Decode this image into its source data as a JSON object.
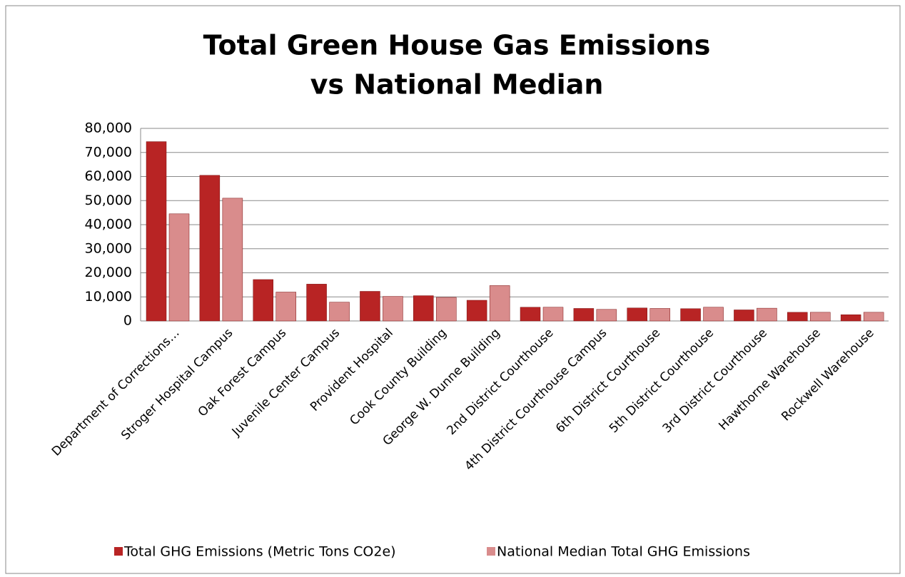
{
  "chart_data": {
    "type": "bar",
    "title": [
      "Total Green House Gas Emissions",
      "vs National Median"
    ],
    "categories": [
      "Department of Corrections…",
      "Stroger Hospital Campus",
      "Oak Forest Campus",
      "Juvenile Center Campus",
      "Provident Hospital",
      "Cook County Building",
      "George W. Dunne Building",
      "2nd District Courthouse",
      "4th District Courthouse Campus",
      "6th District Courthouse",
      "5th District Courthouse",
      "3rd District Courthouse",
      "Hawthorne Warehouse",
      "Rockwell Warehouse"
    ],
    "series": [
      {
        "name": "Total GHG Emissions (Metric Tons CO2e)",
        "color": "#b82424",
        "values": [
          74500,
          60500,
          17200,
          15300,
          12300,
          10500,
          8600,
          5700,
          5200,
          5400,
          5100,
          4600,
          3600,
          2600
        ]
      },
      {
        "name": "National Median Total GHG Emissions",
        "color": "#d98c8c",
        "values": [
          44500,
          51000,
          12000,
          7800,
          10200,
          9800,
          14700,
          5700,
          4800,
          5200,
          5700,
          5300,
          3600,
          3600
        ]
      }
    ],
    "ylim": [
      0,
      80000
    ],
    "yticks": [
      0,
      {
        "value": 10000,
        "label": "10,000"
      },
      {
        "value": 20000,
        "label": "20,000"
      },
      {
        "value": 30000,
        "label": "30,000"
      },
      {
        "value": 40000,
        "label": "40,000"
      },
      {
        "value": 50000,
        "label": "50,000"
      },
      {
        "value": 60000,
        "label": "60,000"
      },
      {
        "value": 70000,
        "label": "70,000"
      },
      {
        "value": 80000,
        "label": "80,000"
      }
    ],
    "grid": true,
    "legend": "bottom"
  }
}
